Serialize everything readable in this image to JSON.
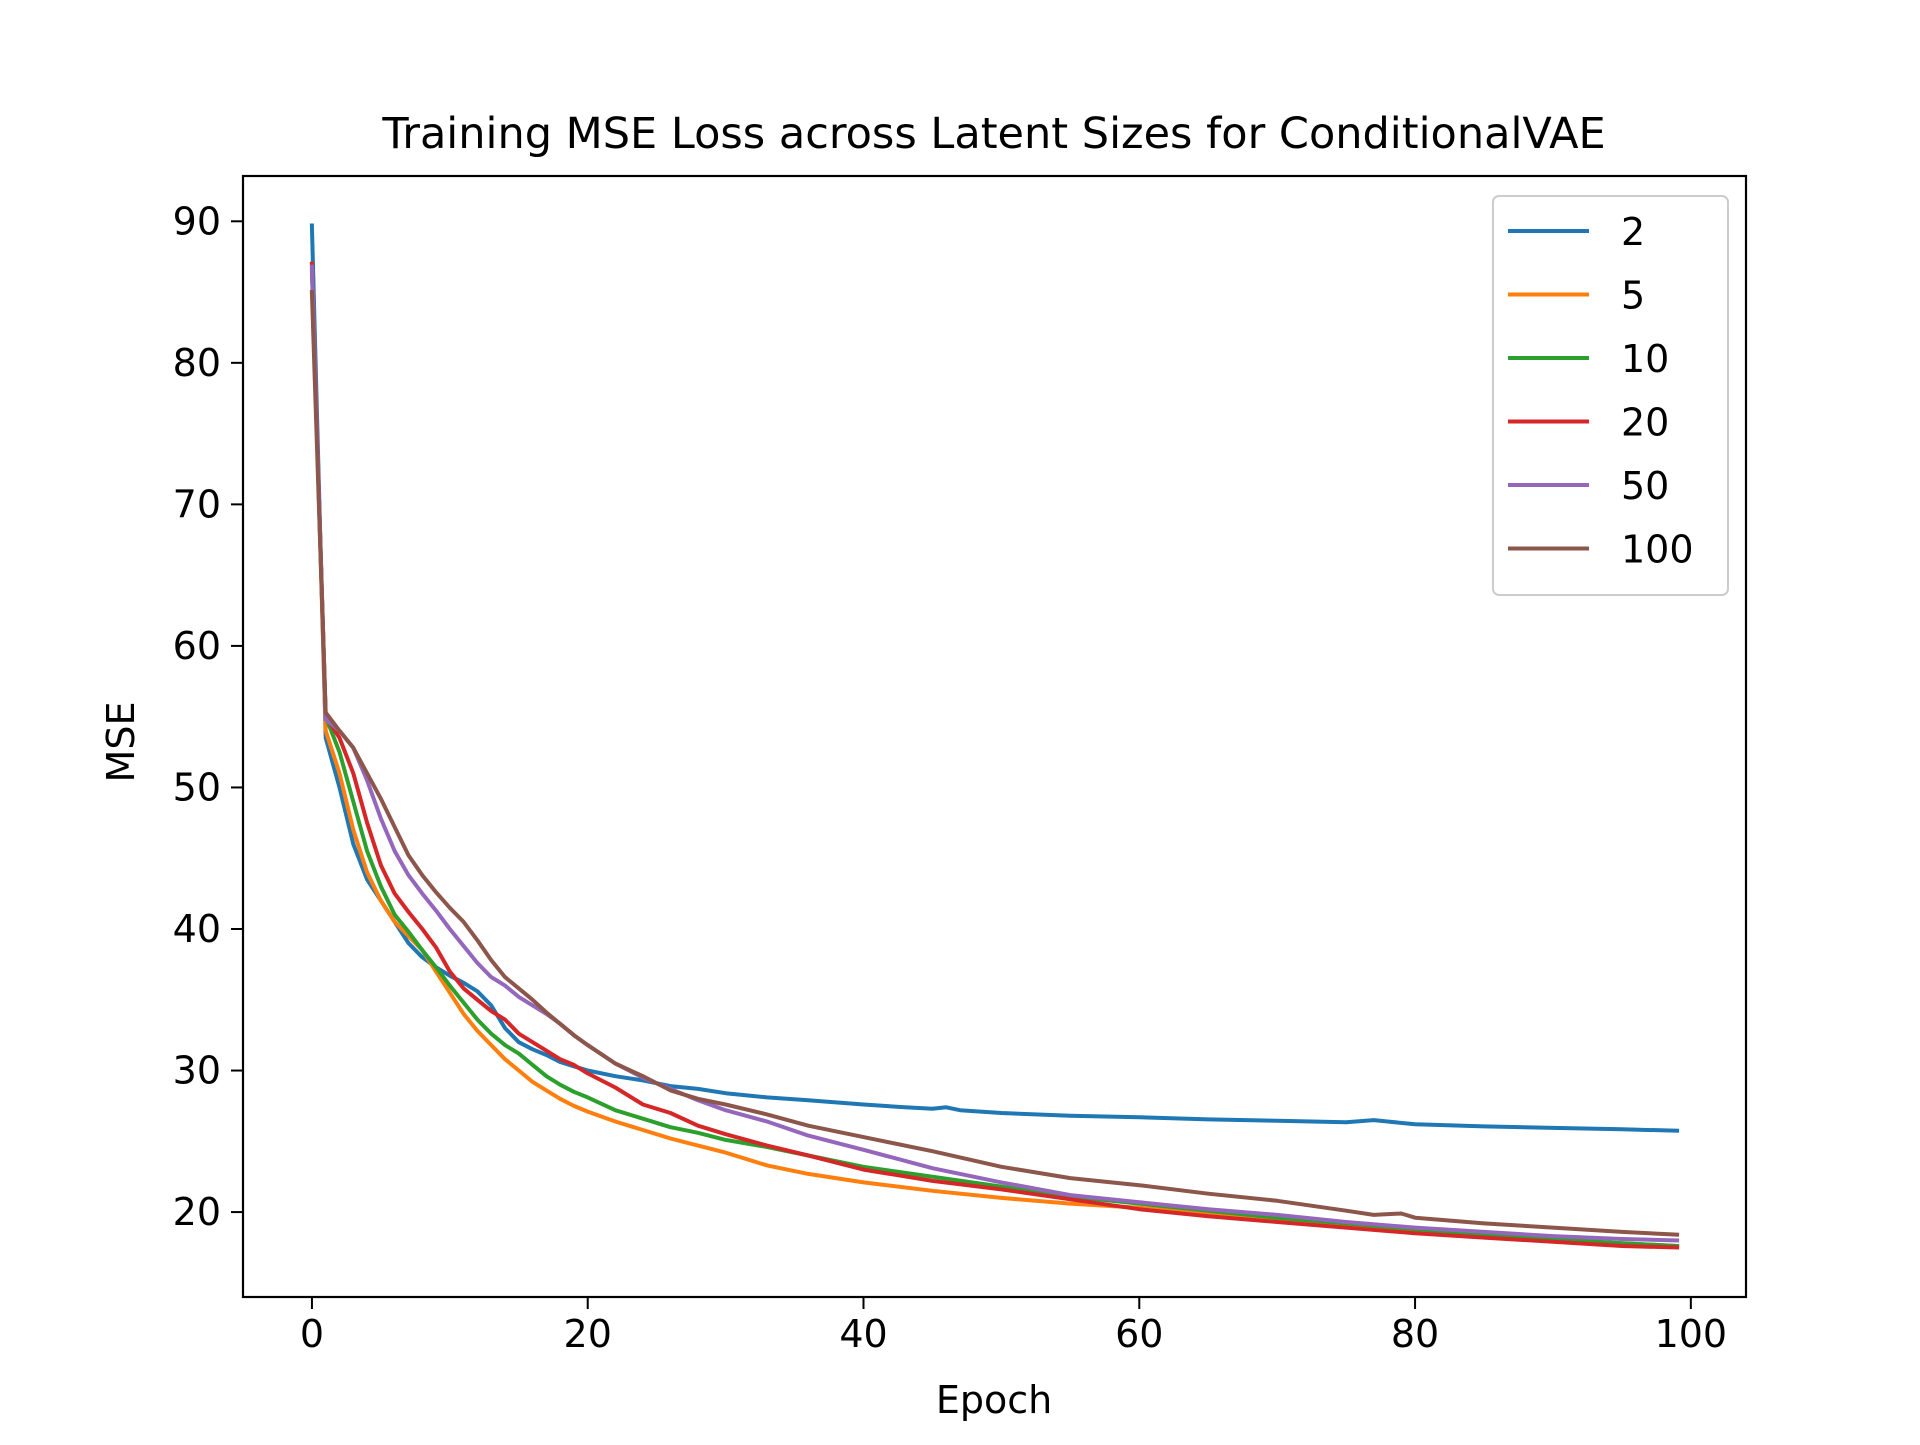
{
  "chart_data": {
    "type": "line",
    "title": "Training MSE Loss across Latent Sizes for ConditionalVAE",
    "xlabel": "Epoch",
    "ylabel": "MSE",
    "xlim": [
      -5,
      104
    ],
    "ylim": [
      14,
      93.2
    ],
    "xticks": [
      0,
      20,
      40,
      60,
      80,
      100
    ],
    "yticks": [
      20,
      30,
      40,
      50,
      60,
      70,
      80,
      90
    ],
    "grid": false,
    "legend_position": "top-right",
    "series": [
      {
        "name": "2",
        "color": "#1f77b4",
        "points": [
          [
            0,
            89.7
          ],
          [
            1,
            53.5
          ],
          [
            2,
            50.0
          ],
          [
            3,
            46.0
          ],
          [
            4,
            43.5
          ],
          [
            5,
            42.0
          ],
          [
            6,
            40.5
          ],
          [
            7,
            39.0
          ],
          [
            8,
            38.0
          ],
          [
            9,
            37.3
          ],
          [
            10,
            36.7
          ],
          [
            11,
            36.2
          ],
          [
            12,
            35.6
          ],
          [
            13,
            34.6
          ],
          [
            14,
            33.0
          ],
          [
            15,
            32.0
          ],
          [
            16,
            31.5
          ],
          [
            17,
            31.1
          ],
          [
            18,
            30.6
          ],
          [
            19,
            30.3
          ],
          [
            20,
            30.0
          ],
          [
            22,
            29.6
          ],
          [
            24,
            29.3
          ],
          [
            26,
            28.9
          ],
          [
            28,
            28.7
          ],
          [
            30,
            28.4
          ],
          [
            33,
            28.1
          ],
          [
            36,
            27.9
          ],
          [
            40,
            27.6
          ],
          [
            43,
            27.4
          ],
          [
            45,
            27.3
          ],
          [
            46,
            27.4
          ],
          [
            47,
            27.2
          ],
          [
            50,
            27.0
          ],
          [
            55,
            26.8
          ],
          [
            60,
            26.7
          ],
          [
            65,
            26.55
          ],
          [
            70,
            26.45
          ],
          [
            75,
            26.35
          ],
          [
            77,
            26.5
          ],
          [
            78,
            26.4
          ],
          [
            80,
            26.2
          ],
          [
            85,
            26.05
          ],
          [
            90,
            25.95
          ],
          [
            95,
            25.85
          ],
          [
            99,
            25.75
          ]
        ]
      },
      {
        "name": "5",
        "color": "#ff7f0e",
        "points": [
          [
            0,
            87.0
          ],
          [
            1,
            54.0
          ],
          [
            2,
            51.0
          ],
          [
            3,
            47.0
          ],
          [
            4,
            44.0
          ],
          [
            5,
            42.0
          ],
          [
            6,
            40.5
          ],
          [
            7,
            39.5
          ],
          [
            8,
            38.5
          ],
          [
            9,
            37.0
          ],
          [
            10,
            35.5
          ],
          [
            11,
            34.0
          ],
          [
            12,
            32.8
          ],
          [
            13,
            31.8
          ],
          [
            14,
            30.8
          ],
          [
            15,
            30.0
          ],
          [
            16,
            29.2
          ],
          [
            17,
            28.6
          ],
          [
            18,
            28.0
          ],
          [
            19,
            27.5
          ],
          [
            20,
            27.1
          ],
          [
            22,
            26.4
          ],
          [
            24,
            25.8
          ],
          [
            26,
            25.2
          ],
          [
            28,
            24.7
          ],
          [
            30,
            24.2
          ],
          [
            33,
            23.3
          ],
          [
            36,
            22.7
          ],
          [
            40,
            22.1
          ],
          [
            45,
            21.5
          ],
          [
            50,
            21.0
          ],
          [
            55,
            20.6
          ],
          [
            60,
            20.3
          ],
          [
            65,
            19.9
          ],
          [
            70,
            19.5
          ],
          [
            75,
            19.1
          ],
          [
            80,
            18.7
          ],
          [
            85,
            18.3
          ],
          [
            90,
            18.0
          ],
          [
            95,
            17.8
          ],
          [
            99,
            17.6
          ]
        ]
      },
      {
        "name": "10",
        "color": "#2ca02c",
        "points": [
          [
            0,
            86.5
          ],
          [
            1,
            55.0
          ],
          [
            2,
            52.5
          ],
          [
            3,
            49.0
          ],
          [
            4,
            45.5
          ],
          [
            5,
            43.0
          ],
          [
            6,
            41.0
          ],
          [
            7,
            39.8
          ],
          [
            8,
            38.5
          ],
          [
            9,
            37.3
          ],
          [
            10,
            36.0
          ],
          [
            11,
            34.8
          ],
          [
            12,
            33.6
          ],
          [
            13,
            32.6
          ],
          [
            14,
            31.8
          ],
          [
            15,
            31.2
          ],
          [
            16,
            30.4
          ],
          [
            17,
            29.6
          ],
          [
            18,
            29.0
          ],
          [
            19,
            28.5
          ],
          [
            20,
            28.1
          ],
          [
            22,
            27.2
          ],
          [
            24,
            26.6
          ],
          [
            26,
            26.0
          ],
          [
            28,
            25.6
          ],
          [
            30,
            25.1
          ],
          [
            33,
            24.6
          ],
          [
            36,
            24.0
          ],
          [
            40,
            23.2
          ],
          [
            45,
            22.5
          ],
          [
            50,
            21.8
          ],
          [
            55,
            21.1
          ],
          [
            60,
            20.6
          ],
          [
            65,
            20.1
          ],
          [
            70,
            19.6
          ],
          [
            75,
            19.2
          ],
          [
            80,
            18.8
          ],
          [
            85,
            18.4
          ],
          [
            90,
            18.1
          ],
          [
            95,
            17.8
          ],
          [
            99,
            17.6
          ]
        ]
      },
      {
        "name": "20",
        "color": "#d62728",
        "points": [
          [
            0,
            87.0
          ],
          [
            1,
            55.0
          ],
          [
            2,
            53.5
          ],
          [
            3,
            51.0
          ],
          [
            4,
            47.5
          ],
          [
            5,
            44.5
          ],
          [
            6,
            42.5
          ],
          [
            7,
            41.2
          ],
          [
            8,
            40.0
          ],
          [
            9,
            38.7
          ],
          [
            10,
            37.0
          ],
          [
            11,
            35.8
          ],
          [
            12,
            35.0
          ],
          [
            13,
            34.2
          ],
          [
            14,
            33.6
          ],
          [
            15,
            32.6
          ],
          [
            16,
            32.0
          ],
          [
            17,
            31.4
          ],
          [
            18,
            30.8
          ],
          [
            19,
            30.4
          ],
          [
            20,
            29.8
          ],
          [
            22,
            28.8
          ],
          [
            24,
            27.6
          ],
          [
            26,
            27.0
          ],
          [
            28,
            26.1
          ],
          [
            30,
            25.5
          ],
          [
            33,
            24.7
          ],
          [
            36,
            24.0
          ],
          [
            40,
            23.0
          ],
          [
            45,
            22.2
          ],
          [
            50,
            21.6
          ],
          [
            55,
            20.9
          ],
          [
            60,
            20.2
          ],
          [
            65,
            19.7
          ],
          [
            70,
            19.3
          ],
          [
            75,
            18.9
          ],
          [
            80,
            18.5
          ],
          [
            85,
            18.2
          ],
          [
            90,
            17.9
          ],
          [
            95,
            17.6
          ],
          [
            99,
            17.5
          ]
        ]
      },
      {
        "name": "50",
        "color": "#9467bd",
        "points": [
          [
            0,
            86.8
          ],
          [
            1,
            54.8
          ],
          [
            2,
            54.0
          ],
          [
            3,
            52.8
          ],
          [
            4,
            50.5
          ],
          [
            5,
            47.8
          ],
          [
            6,
            45.5
          ],
          [
            7,
            43.8
          ],
          [
            8,
            42.5
          ],
          [
            9,
            41.3
          ],
          [
            10,
            40.0
          ],
          [
            11,
            38.8
          ],
          [
            12,
            37.6
          ],
          [
            13,
            36.6
          ],
          [
            14,
            36.0
          ],
          [
            15,
            35.2
          ],
          [
            16,
            34.6
          ],
          [
            17,
            34.0
          ],
          [
            18,
            33.3
          ],
          [
            19,
            32.5
          ],
          [
            20,
            31.8
          ],
          [
            22,
            30.5
          ],
          [
            24,
            29.5
          ],
          [
            26,
            28.7
          ],
          [
            28,
            27.9
          ],
          [
            30,
            27.2
          ],
          [
            33,
            26.4
          ],
          [
            36,
            25.4
          ],
          [
            40,
            24.4
          ],
          [
            45,
            23.1
          ],
          [
            50,
            22.1
          ],
          [
            55,
            21.2
          ],
          [
            60,
            20.7
          ],
          [
            65,
            20.2
          ],
          [
            70,
            19.8
          ],
          [
            75,
            19.3
          ],
          [
            80,
            18.9
          ],
          [
            85,
            18.6
          ],
          [
            90,
            18.3
          ],
          [
            95,
            18.1
          ],
          [
            99,
            18.0
          ]
        ]
      },
      {
        "name": "100",
        "color": "#8c564b",
        "points": [
          [
            0,
            85.0
          ],
          [
            1,
            55.3
          ],
          [
            2,
            54.0
          ],
          [
            3,
            52.8
          ],
          [
            4,
            51.0
          ],
          [
            5,
            49.2
          ],
          [
            6,
            47.2
          ],
          [
            7,
            45.2
          ],
          [
            8,
            43.8
          ],
          [
            9,
            42.6
          ],
          [
            10,
            41.5
          ],
          [
            11,
            40.5
          ],
          [
            12,
            39.2
          ],
          [
            13,
            37.8
          ],
          [
            14,
            36.6
          ],
          [
            15,
            35.8
          ],
          [
            16,
            35.0
          ],
          [
            17,
            34.1
          ],
          [
            18,
            33.3
          ],
          [
            19,
            32.5
          ],
          [
            20,
            31.8
          ],
          [
            22,
            30.5
          ],
          [
            24,
            29.6
          ],
          [
            26,
            28.6
          ],
          [
            28,
            28.0
          ],
          [
            30,
            27.6
          ],
          [
            33,
            26.9
          ],
          [
            36,
            26.1
          ],
          [
            40,
            25.3
          ],
          [
            45,
            24.3
          ],
          [
            50,
            23.2
          ],
          [
            55,
            22.4
          ],
          [
            60,
            21.9
          ],
          [
            65,
            21.3
          ],
          [
            70,
            20.8
          ],
          [
            75,
            20.1
          ],
          [
            77,
            19.8
          ],
          [
            79,
            19.9
          ],
          [
            80,
            19.6
          ],
          [
            85,
            19.2
          ],
          [
            90,
            18.9
          ],
          [
            95,
            18.6
          ],
          [
            99,
            18.4
          ]
        ]
      }
    ]
  }
}
